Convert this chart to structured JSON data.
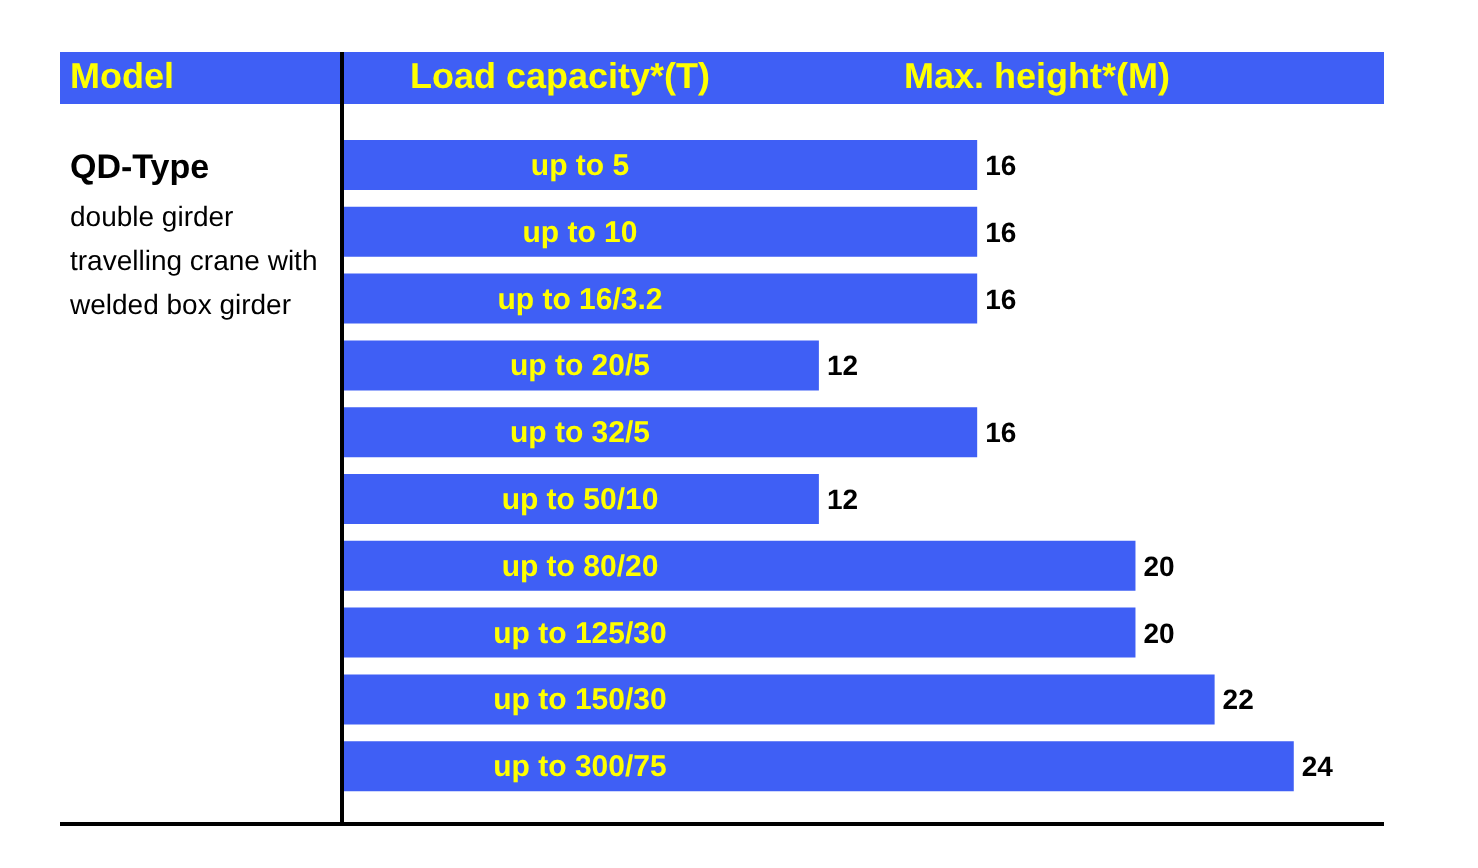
{
  "chart_data": {
    "type": "bar",
    "orientation": "horizontal",
    "ylabel": "Load capacity*(T)",
    "xlabel": "Max. height*(M)",
    "annotations": [
      "Model",
      "QD-Type",
      "double girder travelling crane with welded box girder"
    ],
    "categories": [
      "up to 5",
      "up to 10",
      "up to 16/3.2",
      "up to 20/5",
      "up to 32/5",
      "up to 50/10",
      "up to 80/20",
      "up to 125/30",
      "up to 150/30",
      "up to 300/75"
    ],
    "values": [
      16,
      16,
      16,
      12,
      16,
      12,
      20,
      20,
      22,
      24
    ],
    "color": "#3f5ff5",
    "data_labels": true,
    "grid": false,
    "legend": false
  }
}
